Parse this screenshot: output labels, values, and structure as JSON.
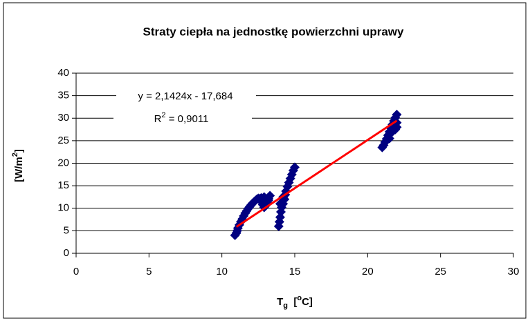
{
  "chart_data": {
    "type": "scatter",
    "title": "Straty ciepła na jednostkę powierzchni uprawy",
    "y_label": [
      "[W/m",
      "2",
      "]"
    ],
    "x_label": [
      "T",
      "g",
      "  [",
      "o",
      "C]"
    ],
    "annotations": {
      "equation": "y = 2,1424x - 17,684",
      "r2": [
        "R",
        "2",
        " = 0,9011"
      ]
    },
    "xlim": [
      0,
      30
    ],
    "xticks": [
      0,
      5,
      10,
      15,
      20,
      25,
      30
    ],
    "ylim": [
      0,
      40
    ],
    "yticks": [
      0,
      5,
      10,
      15,
      20,
      25,
      30,
      35,
      40
    ],
    "grid": true,
    "color": "#000080",
    "x": [
      10.9,
      11.0,
      11.05,
      11.1,
      11.2,
      11.3,
      11.4,
      11.5,
      11.6,
      11.7,
      11.8,
      11.9,
      12.0,
      12.1,
      12.2,
      12.3,
      12.4,
      12.5,
      12.6,
      12.7,
      12.8,
      12.9,
      13.0,
      13.1,
      13.2,
      13.3,
      13.2,
      12.7,
      12.9,
      13.0,
      13.9,
      13.95,
      14.0,
      14.05,
      14.1,
      14.2,
      14.3,
      14.35,
      14.4,
      14.5,
      14.6,
      14.7,
      14.8,
      14.9,
      15.0,
      14.2,
      14.0,
      21.0,
      21.1,
      21.2,
      21.3,
      21.4,
      21.5,
      21.6,
      21.7,
      21.8,
      21.9,
      22.0,
      22.0,
      21.9,
      22.0,
      21.7,
      21.5,
      21.8
    ],
    "values": [
      4,
      4.5,
      5,
      5.6,
      6.3,
      7,
      7.6,
      8.3,
      8.9,
      9.4,
      9.9,
      10.3,
      10.7,
      11.1,
      11.4,
      11.7,
      12,
      12.2,
      12.1,
      11.5,
      10.8,
      10.2,
      10.6,
      11.3,
      12.2,
      12.8,
      11.8,
      12.3,
      12.5,
      12.0,
      6,
      7,
      8,
      9.2,
      10.2,
      11,
      12,
      13,
      13.8,
      14.8,
      15.7,
      16.6,
      17.5,
      18.4,
      19.1,
      12.5,
      11,
      23.5,
      24,
      24.7,
      25.4,
      26.2,
      27,
      27.8,
      28.6,
      29.4,
      30.1,
      30.8,
      28,
      27.5,
      29,
      27,
      25.5,
      28
    ],
    "trendline": {
      "color": "#ff0000",
      "x": [
        11,
        22
      ],
      "values": [
        5.88,
        29.45
      ]
    }
  }
}
